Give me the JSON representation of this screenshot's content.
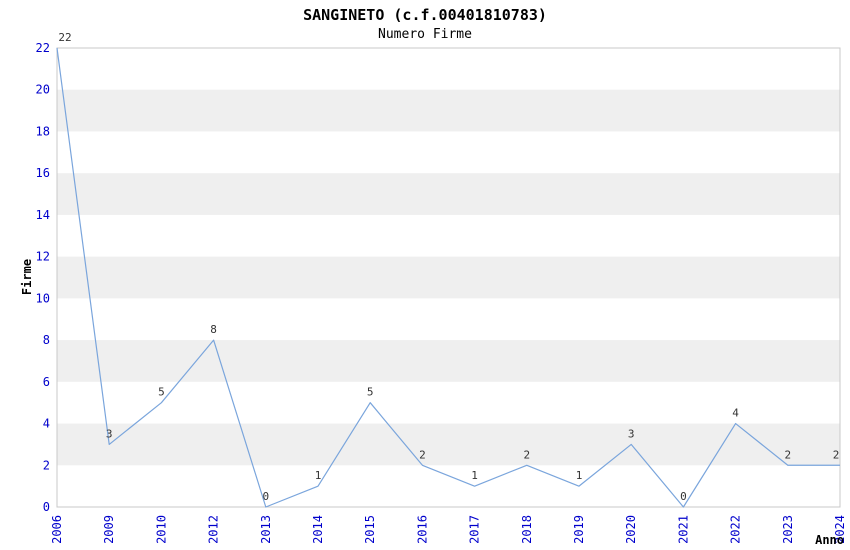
{
  "chart_data": {
    "type": "line",
    "title": "SANGINETO (c.f.00401810783)",
    "subtitle": "Numero Firme",
    "xlabel": "Anno",
    "ylabel": "Firme",
    "categories": [
      "2006",
      "2009",
      "2010",
      "2012",
      "2013",
      "2014",
      "2015",
      "2016",
      "2017",
      "2018",
      "2019",
      "2020",
      "2021",
      "2022",
      "2023",
      "2024"
    ],
    "values": [
      22,
      3,
      5,
      8,
      0,
      1,
      5,
      2,
      1,
      2,
      1,
      3,
      0,
      4,
      2,
      2
    ],
    "ylim": [
      0,
      22
    ],
    "ytick_step": 2,
    "grid": "alternating-horizontal-bands",
    "legend": "none",
    "colors": {
      "line": "#7aa5dc",
      "tick_labels": "#0000cc",
      "data_labels": "#333333",
      "band": "#efefef",
      "plot_border": "#c8c8c8",
      "title_text": "#000000"
    }
  }
}
